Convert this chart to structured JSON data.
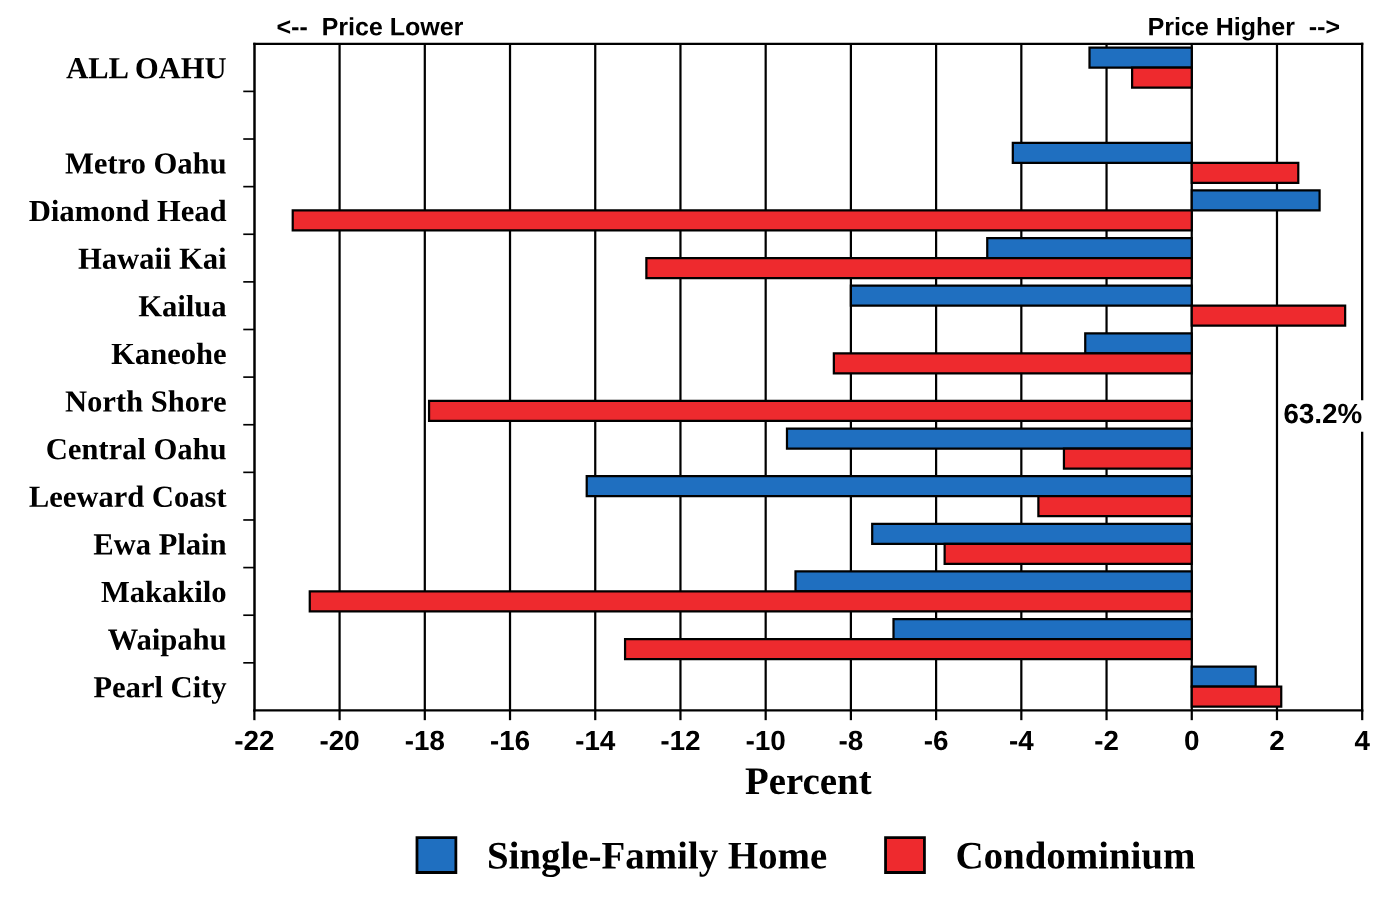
{
  "chart_data": {
    "type": "bar",
    "orientation": "horizontal",
    "xlabel": "Percent",
    "categories": [
      "ALL OAHU",
      null,
      "Metro Oahu",
      "Diamond Head",
      "Hawaii Kai",
      "Kailua",
      "Kaneohe",
      "North Shore",
      "Central Oahu",
      "Leeward Coast",
      "Ewa Plain",
      "Makakilo",
      "Waipahu",
      "Pearl City"
    ],
    "series": [
      {
        "name": "Single-Family Home",
        "color": "#1f6fc0",
        "values": [
          -2.4,
          null,
          -4.2,
          3.0,
          -4.8,
          -8.0,
          -2.5,
          null,
          -9.5,
          -14.2,
          -7.5,
          -9.3,
          -7.0,
          1.5
        ],
        "value_labels": [
          null,
          null,
          null,
          null,
          null,
          null,
          null,
          "63.2%",
          null,
          null,
          null,
          null,
          null,
          null
        ]
      },
      {
        "name": "Condominium",
        "color": "#ee2a2e",
        "values": [
          -1.4,
          null,
          2.5,
          -21.1,
          -12.8,
          3.6,
          -8.4,
          -17.9,
          -3.0,
          -3.6,
          -5.8,
          -20.7,
          -13.3,
          2.1
        ]
      }
    ],
    "xlim": [
      -22,
      4
    ],
    "xticks": [
      -22,
      -20,
      -18,
      -16,
      -14,
      -12,
      -10,
      -8,
      -6,
      -4,
      -2,
      0,
      2,
      4
    ],
    "grid": "x",
    "legend": "bottom",
    "annotations": [
      "<--  Price Lower",
      "Price Higher  -->"
    ]
  }
}
